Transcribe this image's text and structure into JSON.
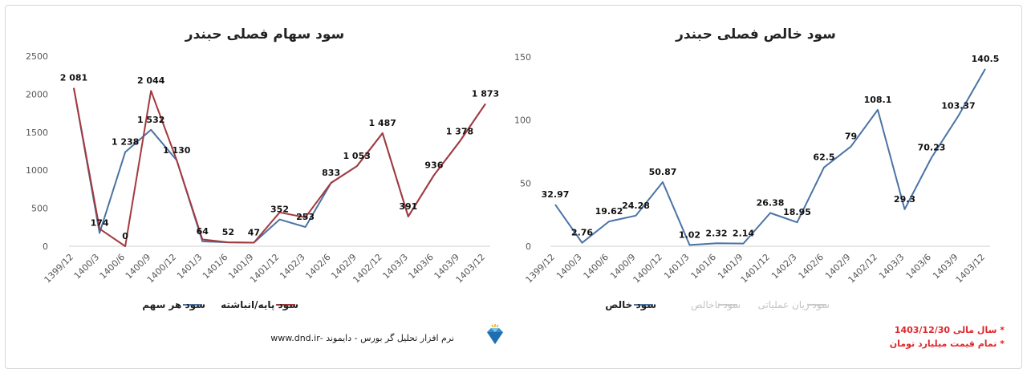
{
  "chart_data": [
    {
      "type": "line",
      "title": "سود سهام فصلی حبندر",
      "categories": [
        "1399/12",
        "1400/3",
        "1400/6",
        "1400/9",
        "1400/12",
        "1401/3",
        "1401/6",
        "1401/9",
        "1401/12",
        "1402/3",
        "1402/6",
        "1402/9",
        "1402/12",
        "1403/3",
        "1403/6",
        "1403/9",
        "1403/12"
      ],
      "ylim": [
        0,
        2500
      ],
      "yticks": [
        0,
        500,
        1000,
        1500,
        2000,
        2500
      ],
      "grid": false,
      "legend_position": "bottom",
      "series": [
        {
          "name": "سود هر سهم",
          "color": "#4a73a4",
          "values": [
            2081,
            174,
            1238,
            1532,
            1130,
            64,
            52,
            47,
            352,
            253,
            833,
            1053,
            1487,
            391,
            936,
            1378,
            1873
          ],
          "labels": [
            "2 081",
            "174",
            "1 238",
            "1 532",
            "1 130",
            "64",
            "52",
            "47",
            "352",
            "253",
            "833",
            "1 053",
            "1 487",
            "391",
            "936",
            "1 378",
            "1 873"
          ]
        },
        {
          "name": "سود پایه/انباشته",
          "color": "#a4393d",
          "values": [
            2081,
            230,
            0,
            2044,
            1130,
            90,
            52,
            47,
            445,
            380,
            833,
            1053,
            1487,
            391,
            936,
            1378,
            1873
          ],
          "labels": [
            "",
            "",
            "0",
            "2 044",
            "",
            "",
            "",
            "",
            "",
            "",
            "",
            "",
            "",
            "",
            "",
            "",
            ""
          ]
        }
      ]
    },
    {
      "type": "line",
      "title": "سود خالص فصلی حبندر",
      "categories": [
        "1399/12",
        "1400/3",
        "1400/6",
        "1400/9",
        "1400/12",
        "1401/3",
        "1401/6",
        "1401/9",
        "1401/12",
        "1402/3",
        "1402/6",
        "1402/9",
        "1402/12",
        "1403/3",
        "1403/6",
        "1403/9",
        "1403/12"
      ],
      "ylim": [
        0,
        150
      ],
      "yticks": [
        0,
        50,
        100,
        150
      ],
      "grid": false,
      "legend_position": "bottom",
      "series": [
        {
          "name": "سود خالص",
          "color": "#4a73a4",
          "values": [
            32.97,
            2.76,
            19.62,
            24.28,
            50.87,
            1.02,
            2.32,
            2.14,
            26.38,
            18.95,
            62.5,
            79,
            108.1,
            29.3,
            70.23,
            103.37,
            140.5
          ],
          "labels": [
            "32.97",
            "2.76",
            "19.62",
            "24.28",
            "50.87",
            "1.02",
            "2.32",
            "2.14",
            "26.38",
            "18.95",
            "62.5",
            "79",
            "108.1",
            "29.3",
            "70.23",
            "103.37",
            "140.5"
          ]
        }
      ],
      "legend": [
        {
          "name": "سود خالص",
          "color": "#4a73a4",
          "active": true
        },
        {
          "name": "سود ناخالص",
          "color": "#cccccc",
          "active": false
        },
        {
          "name": "سود زیان عملیاتی",
          "color": "#cccccc",
          "active": false
        }
      ]
    }
  ],
  "footer": {
    "brand_text": "نرم افزار تحلیل گر بورس - دایموند -www.dnd.ir",
    "icon": "diamond-icon"
  },
  "notes": {
    "fiscal_year": "* سال مالی 1403/12/30",
    "units": "* تمام قیمت میلیارد تومان"
  }
}
